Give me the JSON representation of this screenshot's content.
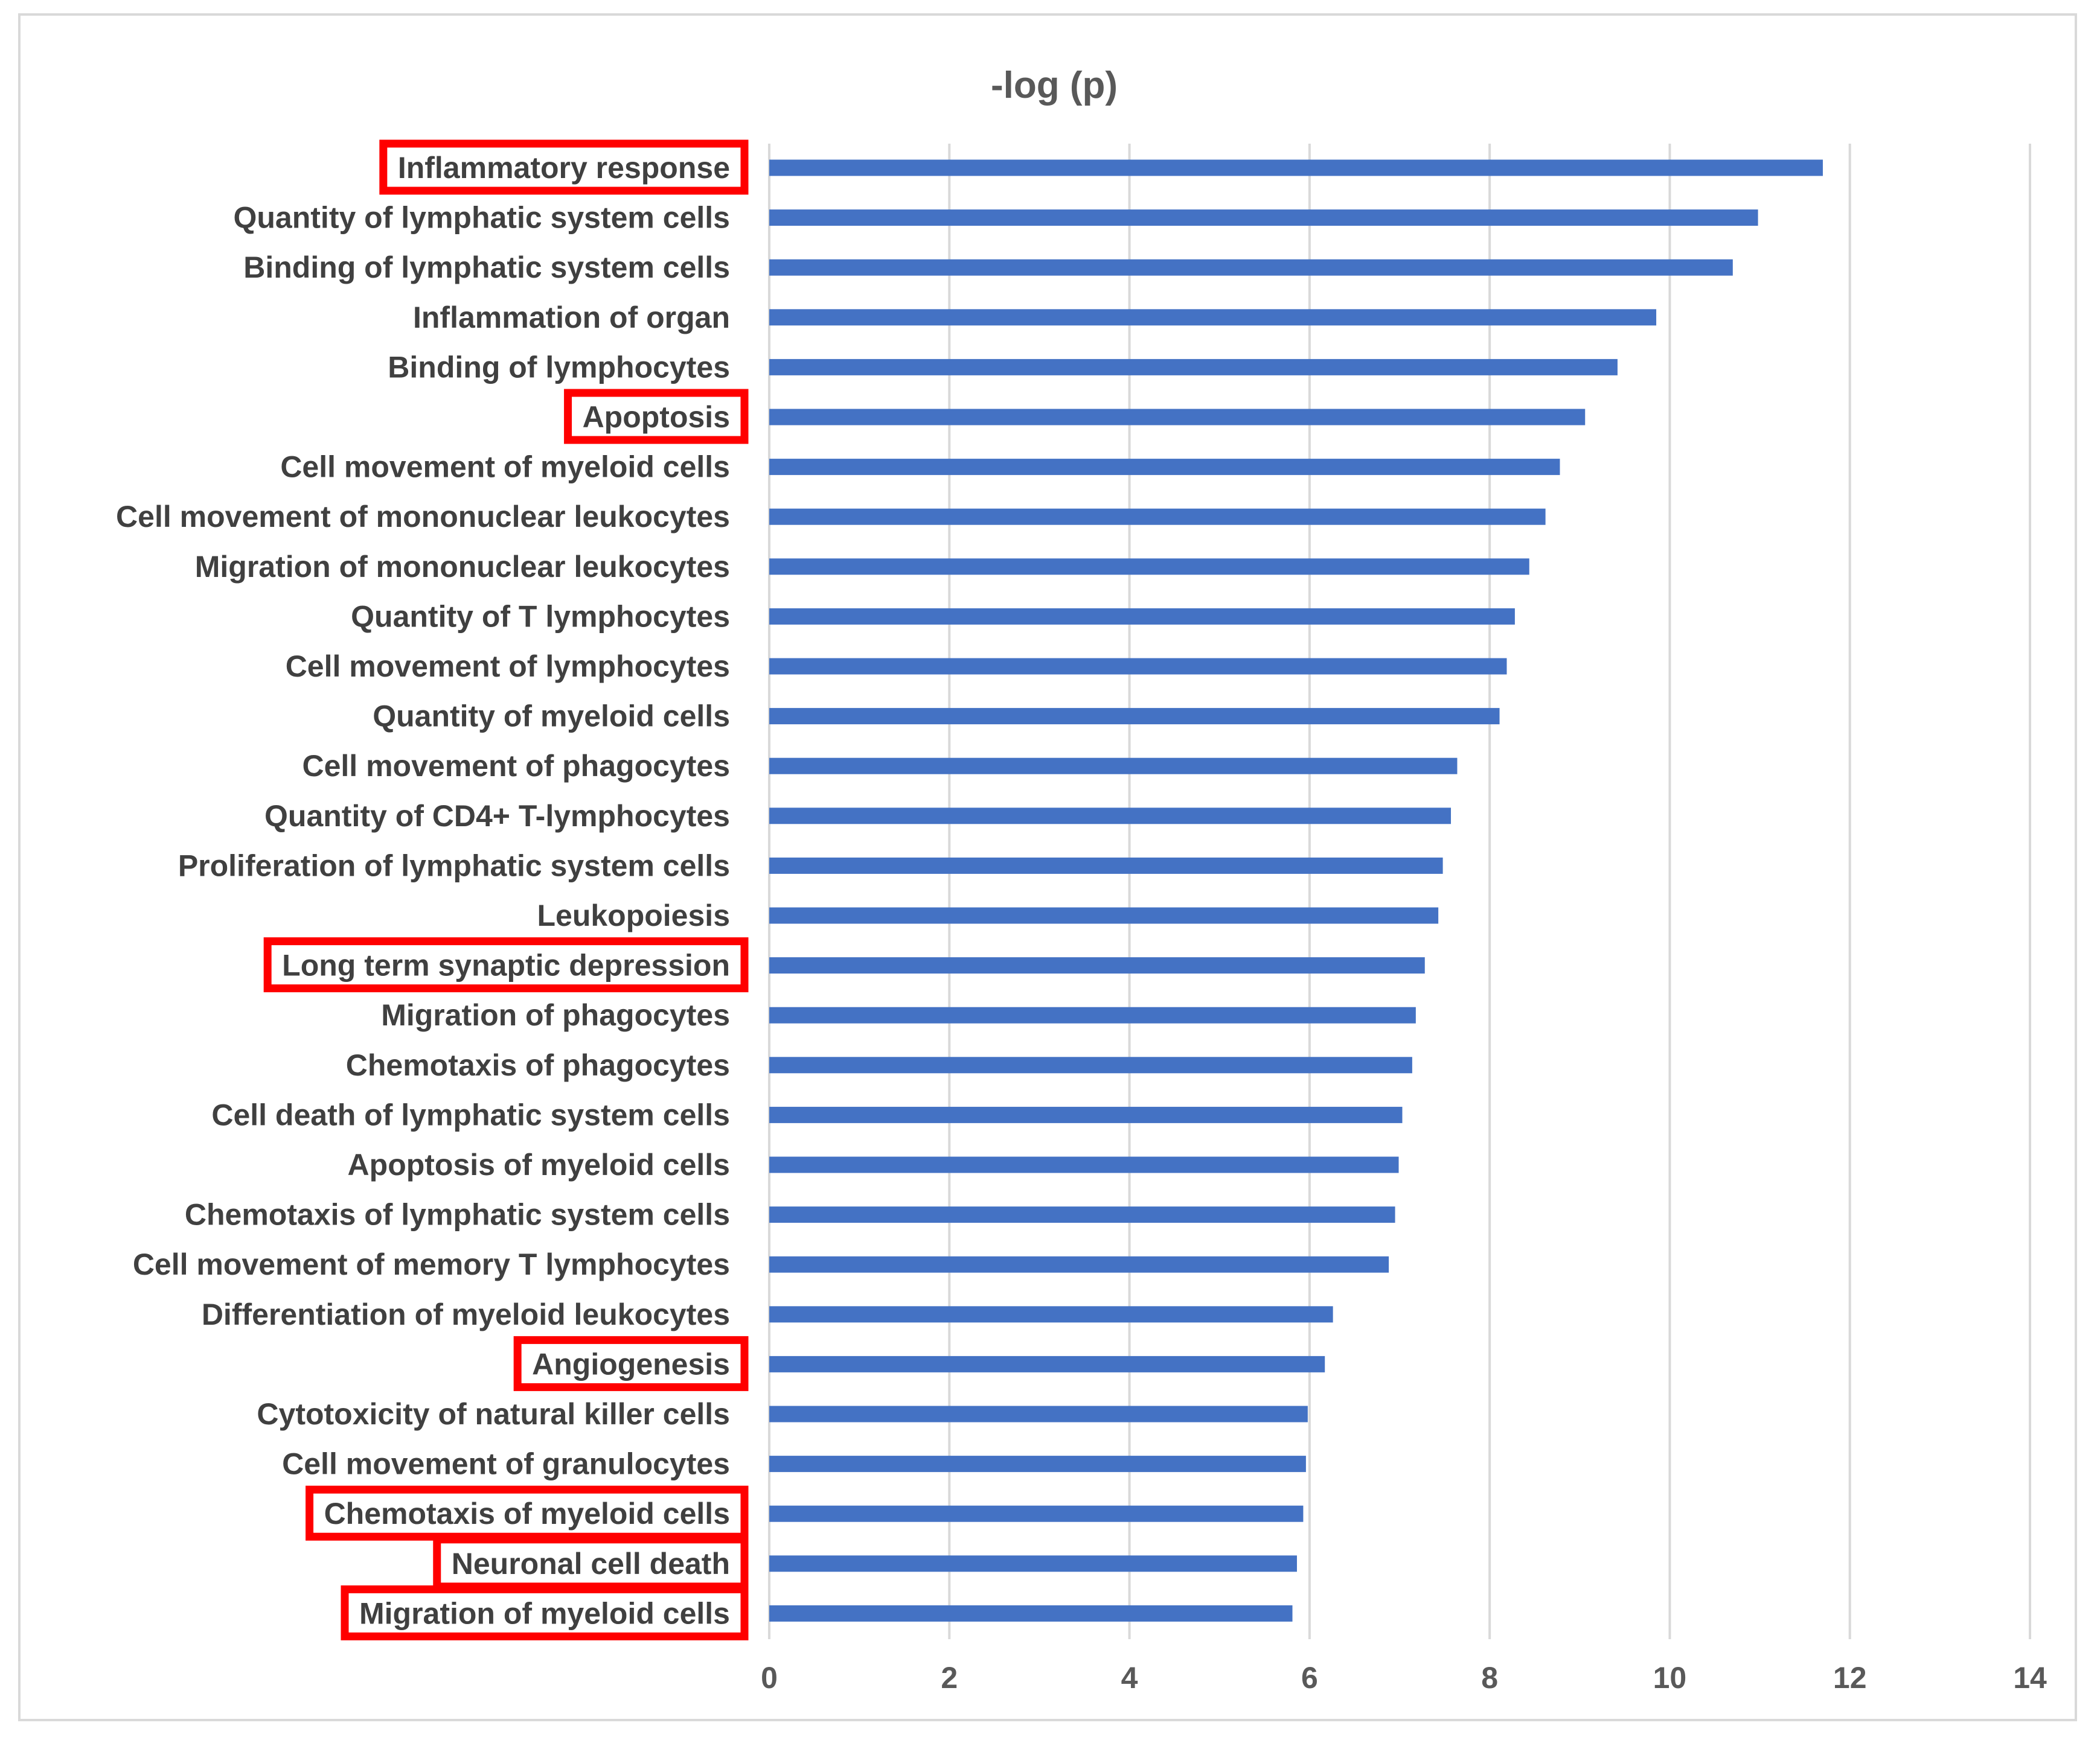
{
  "chart_data": {
    "type": "bar",
    "orientation": "horizontal",
    "title": "-log (p)",
    "xlabel": "",
    "ylabel": "",
    "xlim": [
      0,
      14
    ],
    "xticks": [
      0,
      2,
      4,
      6,
      8,
      10,
      12,
      14
    ],
    "grid": true,
    "legend": "none",
    "bar_color": "#4472c4",
    "highlight_color": "#ff0000",
    "categories": [
      "Inflammatory response",
      "Quantity of lymphatic system cells",
      "Binding of lymphatic system cells",
      "Inflammation of organ",
      "Binding of lymphocytes",
      "Apoptosis",
      "Cell movement of myeloid cells",
      "Cell movement of mononuclear leukocytes",
      "Migration of mononuclear leukocytes",
      "Quantity of T lymphocytes",
      "Cell movement of lymphocytes",
      "Quantity of myeloid cells",
      "Cell movement of phagocytes",
      "Quantity of CD4+ T-lymphocytes",
      "Proliferation of lymphatic system cells",
      "Leukopoiesis",
      "Long term synaptic depression",
      "Migration of phagocytes",
      "Chemotaxis of phagocytes",
      "Cell death of lymphatic system cells",
      "Apoptosis of myeloid cells",
      "Chemotaxis of lymphatic system cells",
      "Cell movement of memory T lymphocytes",
      "Differentiation of myeloid leukocytes",
      "Angiogenesis",
      "Cytotoxicity of natural killer cells",
      "Cell movement of granulocytes",
      "Chemotaxis of myeloid cells",
      "Neuronal cell death",
      "Migration of myeloid cells"
    ],
    "values": [
      11.7,
      10.98,
      10.7,
      9.85,
      9.42,
      9.06,
      8.78,
      8.62,
      8.44,
      8.28,
      8.19,
      8.11,
      7.64,
      7.57,
      7.48,
      7.43,
      7.28,
      7.18,
      7.14,
      7.03,
      6.99,
      6.95,
      6.88,
      6.26,
      6.17,
      5.98,
      5.96,
      5.93,
      5.86,
      5.81
    ],
    "highlighted": [
      "Inflammatory response",
      "Apoptosis",
      "Long term synaptic depression",
      "Angiogenesis",
      "Chemotaxis of myeloid cells",
      "Neuronal cell death",
      "Migration of myeloid cells"
    ]
  }
}
